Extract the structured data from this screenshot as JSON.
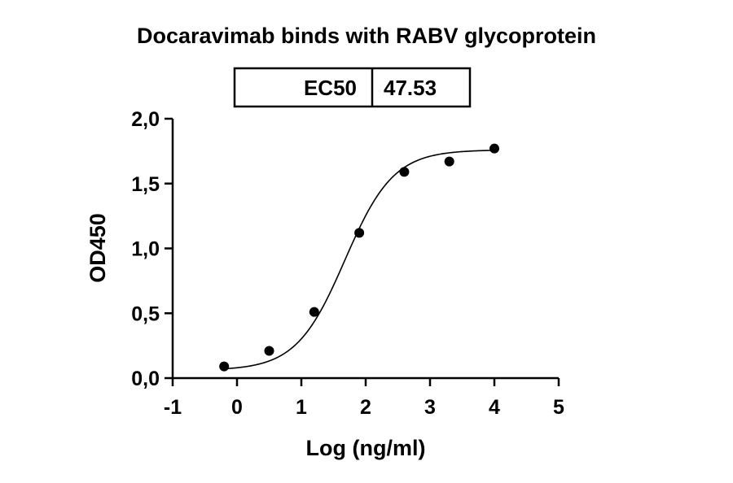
{
  "chart_data": {
    "type": "scatter",
    "title": "Docaravimab binds with RABV glycoprotein",
    "xlabel": "Log (ng/ml)",
    "ylabel": "OD450",
    "xlim": [
      -1,
      5
    ],
    "ylim": [
      0,
      2
    ],
    "x_ticks": [
      "-1",
      "0",
      "1",
      "2",
      "3",
      "4",
      "5"
    ],
    "y_ticks": [
      "0,0",
      "0,5",
      "1,0",
      "1,5",
      "2,0"
    ],
    "grid": false,
    "legend": "none",
    "series": [
      {
        "points": [
          {
            "x": -0.2,
            "y": 0.09
          },
          {
            "x": 0.5,
            "y": 0.21
          },
          {
            "x": 1.2,
            "y": 0.51
          },
          {
            "x": 1.9,
            "y": 1.12
          },
          {
            "x": 2.6,
            "y": 1.59
          },
          {
            "x": 3.3,
            "y": 1.67
          },
          {
            "x": 4.0,
            "y": 1.77
          }
        ]
      }
    ],
    "fit_curve": {
      "model": "4PL",
      "bottom": 0.06,
      "top": 1.76,
      "log_ec50": 1.677,
      "hill": 1.15
    },
    "table": {
      "label": "EC50",
      "value": "47.53"
    }
  }
}
